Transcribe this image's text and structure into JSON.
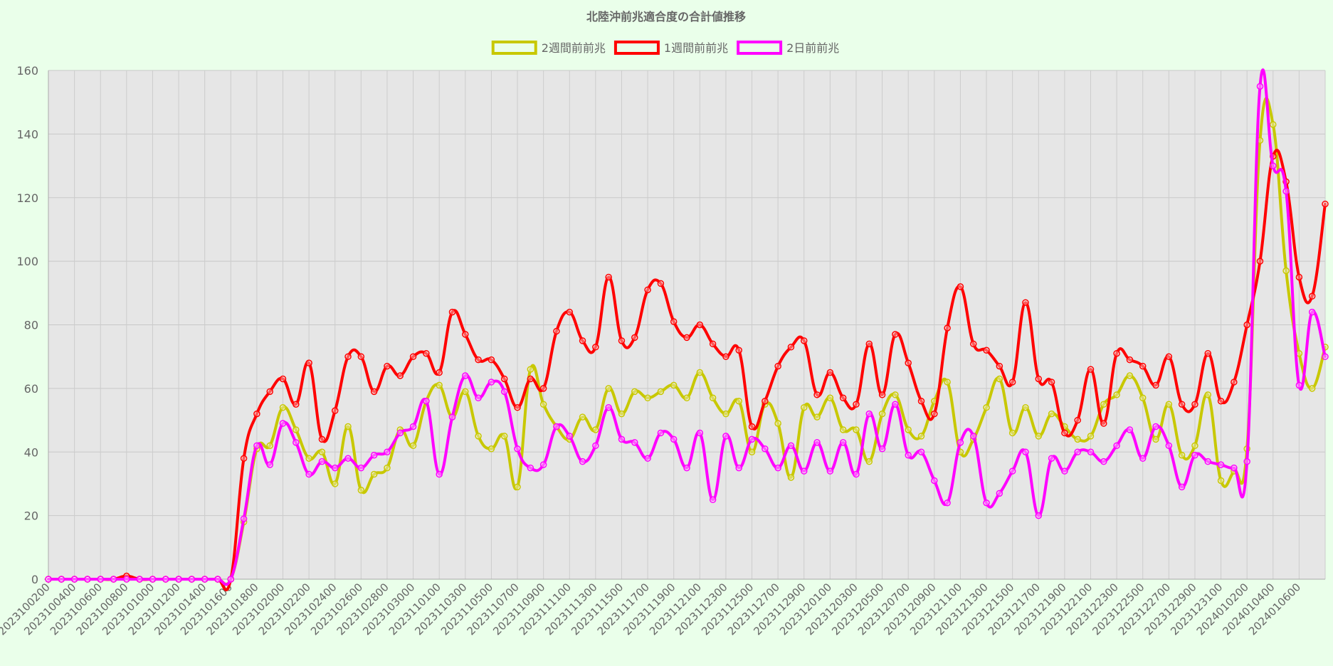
{
  "chart_data": {
    "type": "line",
    "title": "北陸沖前兆適合度の合計値推移",
    "legend_position": "top",
    "grid": true,
    "plot_background": "#e6e6e6",
    "page_background": "#eaffea",
    "ylim": [
      0,
      160
    ],
    "y_ticks": [
      0,
      20,
      40,
      60,
      80,
      100,
      120,
      140,
      160
    ],
    "x_tick_labels": [
      "2023100200",
      "2023100400",
      "2023100600",
      "2023100800",
      "2023101000",
      "2023101200",
      "2023101400",
      "2023101600",
      "2023101800",
      "2023102000",
      "2023102200",
      "2023102400",
      "2023102600",
      "2023102800",
      "2023103000",
      "2023110100",
      "2023110300",
      "2023110500",
      "2023110700",
      "2023110900",
      "2023111100",
      "2023111300",
      "2023111500",
      "2023111700",
      "2023111900",
      "2023112100",
      "2023112300",
      "2023112500",
      "2023112700",
      "2023112900",
      "2023120100",
      "2023120300",
      "2023120500",
      "2023120700",
      "2023120900",
      "2023121100",
      "2023121300",
      "2023121500",
      "2023121700",
      "2023121900",
      "2023122100",
      "2023122300",
      "2023122500",
      "2023122700",
      "2023122900",
      "2023123100",
      "2024010200",
      "2024010400",
      "2024010600"
    ],
    "series": [
      {
        "name": "2週間前前兆",
        "color": "#c8c800",
        "values": [
          0,
          0,
          0,
          0,
          0,
          0,
          0,
          0,
          0,
          0,
          0,
          0,
          0,
          0,
          0,
          18,
          41,
          42,
          54,
          47,
          38,
          40,
          30,
          48,
          28,
          33,
          35,
          47,
          42,
          56,
          61,
          51,
          59,
          45,
          41,
          45,
          29,
          66,
          55,
          48,
          44,
          51,
          47,
          60,
          52,
          59,
          57,
          59,
          61,
          57,
          65,
          57,
          52,
          56,
          40,
          55,
          49,
          32,
          54,
          51,
          57,
          47,
          47,
          37,
          52,
          58,
          47,
          45,
          56,
          62,
          40,
          44,
          54,
          63,
          46,
          54,
          45,
          52,
          48,
          44,
          45,
          55,
          58,
          64,
          57,
          44,
          55,
          39,
          42,
          58,
          31,
          34,
          41,
          138,
          143,
          97,
          71,
          60,
          73
        ]
      },
      {
        "name": "1週間前前兆",
        "color": "#ff0000",
        "values": [
          0,
          0,
          0,
          0,
          0,
          0,
          1,
          0,
          0,
          0,
          0,
          0,
          0,
          0,
          0,
          38,
          52,
          59,
          63,
          55,
          68,
          44,
          53,
          70,
          70,
          59,
          67,
          64,
          70,
          71,
          65,
          84,
          77,
          69,
          69,
          63,
          54,
          63,
          60,
          78,
          84,
          75,
          73,
          95,
          75,
          76,
          91,
          93,
          81,
          76,
          80,
          74,
          70,
          72,
          48,
          56,
          67,
          73,
          75,
          58,
          65,
          57,
          55,
          74,
          58,
          77,
          68,
          56,
          52,
          79,
          92,
          74,
          72,
          67,
          62,
          87,
          63,
          62,
          46,
          50,
          66,
          49,
          71,
          69,
          67,
          61,
          70,
          55,
          55,
          71,
          56,
          62,
          80,
          100,
          133,
          125,
          95,
          89,
          118
        ]
      },
      {
        "name": "2日前前兆",
        "color": "#ff00ff",
        "values": [
          0,
          0,
          0,
          0,
          0,
          0,
          0,
          0,
          0,
          0,
          0,
          0,
          0,
          0,
          0,
          19,
          42,
          36,
          49,
          43,
          33,
          37,
          35,
          38,
          35,
          39,
          40,
          46,
          48,
          56,
          33,
          51,
          64,
          57,
          62,
          59,
          41,
          35,
          36,
          48,
          45,
          37,
          42,
          54,
          44,
          43,
          38,
          46,
          44,
          35,
          46,
          25,
          45,
          35,
          44,
          41,
          35,
          42,
          34,
          43,
          34,
          43,
          33,
          52,
          41,
          55,
          39,
          40,
          31,
          24,
          43,
          45,
          24,
          27,
          34,
          40,
          20,
          38,
          34,
          40,
          40,
          37,
          42,
          47,
          38,
          48,
          42,
          29,
          39,
          37,
          36,
          35,
          37,
          155,
          130,
          122,
          61,
          84,
          70
        ]
      }
    ]
  }
}
